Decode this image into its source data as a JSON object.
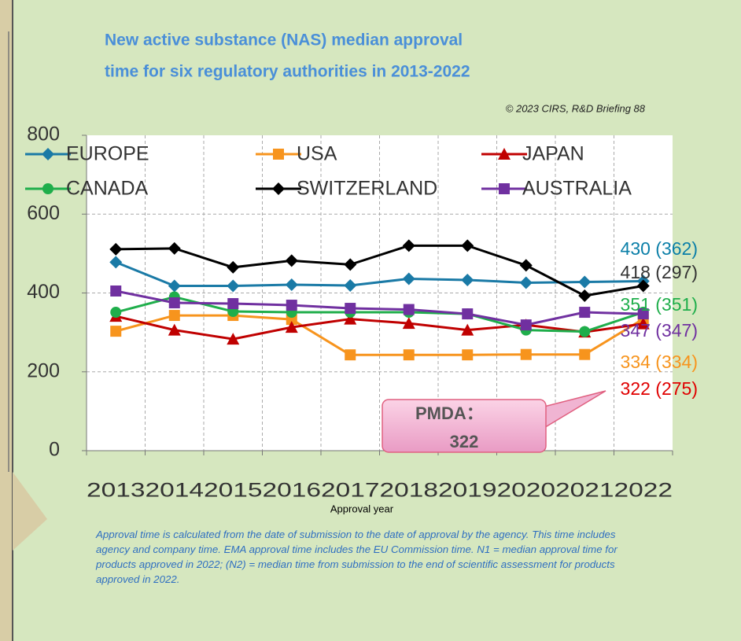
{
  "chart_data": {
    "type": "line",
    "title_lines": [
      "New active substance (NAS) median approval",
      "time for six regulatory authorities in 2013-2022"
    ],
    "copyright": "© 2023 CIRS, R&D Briefing 88",
    "x_label": "Approval year",
    "categories": [
      "2013",
      "2014",
      "2015",
      "2016",
      "2017",
      "2018",
      "2019",
      "2020",
      "2021",
      "2022"
    ],
    "ylim": [
      0,
      800
    ],
    "yticks": [
      0,
      200,
      400,
      600,
      800
    ],
    "grid": true,
    "series": [
      {
        "name": "EUROPE",
        "color": "#1a7aa6",
        "marker": "diamond",
        "values": [
          478,
          418,
          418,
          421,
          419,
          436,
          433,
          426,
          428,
          430
        ]
      },
      {
        "name": "USA",
        "color": "#f7941d",
        "marker": "square",
        "values": [
          303,
          343,
          343,
          333,
          243,
          243,
          243,
          244,
          244,
          334
        ]
      },
      {
        "name": "JAPAN",
        "color": "#c00000",
        "marker": "triangle",
        "values": [
          341,
          306,
          283,
          313,
          334,
          323,
          306,
          319,
          301,
          322
        ]
      },
      {
        "name": "CANADA",
        "color": "#1fae4b",
        "marker": "circle",
        "values": [
          351,
          390,
          353,
          351,
          351,
          351,
          347,
          306,
          302,
          351
        ]
      },
      {
        "name": "SWITZERLAND",
        "color": "#000000",
        "marker": "diamond",
        "values": [
          511,
          513,
          465,
          482,
          472,
          520,
          520,
          470,
          393,
          418
        ]
      },
      {
        "name": "AUSTRALIA",
        "color": "#7030a0",
        "marker": "square",
        "values": [
          405,
          375,
          373,
          369,
          361,
          358,
          347,
          319,
          351,
          347
        ]
      }
    ],
    "end_labels": [
      {
        "text": "430 (362)",
        "color": "#0b7fa8"
      },
      {
        "text": "418 (297)",
        "color": "#333333"
      },
      {
        "text": "351 (351)",
        "color": "#1fae4b"
      },
      {
        "text": "347 (347)",
        "color": "#7030a0"
      },
      {
        "text": "334 (334)",
        "color": "#f7941d"
      },
      {
        "text": "322 (275)",
        "color": "#e00000"
      }
    ],
    "callout": [
      "PMDA：",
      "322"
    ],
    "footnote": "Approval time is calculated from the date of submission to the date of approval by the agency. This time includes agency and company time. EMA approval time includes the EU Commission time. N1 = median approval time for products approved in 2022; (N2) = median time from submission to the end of scientific assessment for products approved in 2022."
  }
}
